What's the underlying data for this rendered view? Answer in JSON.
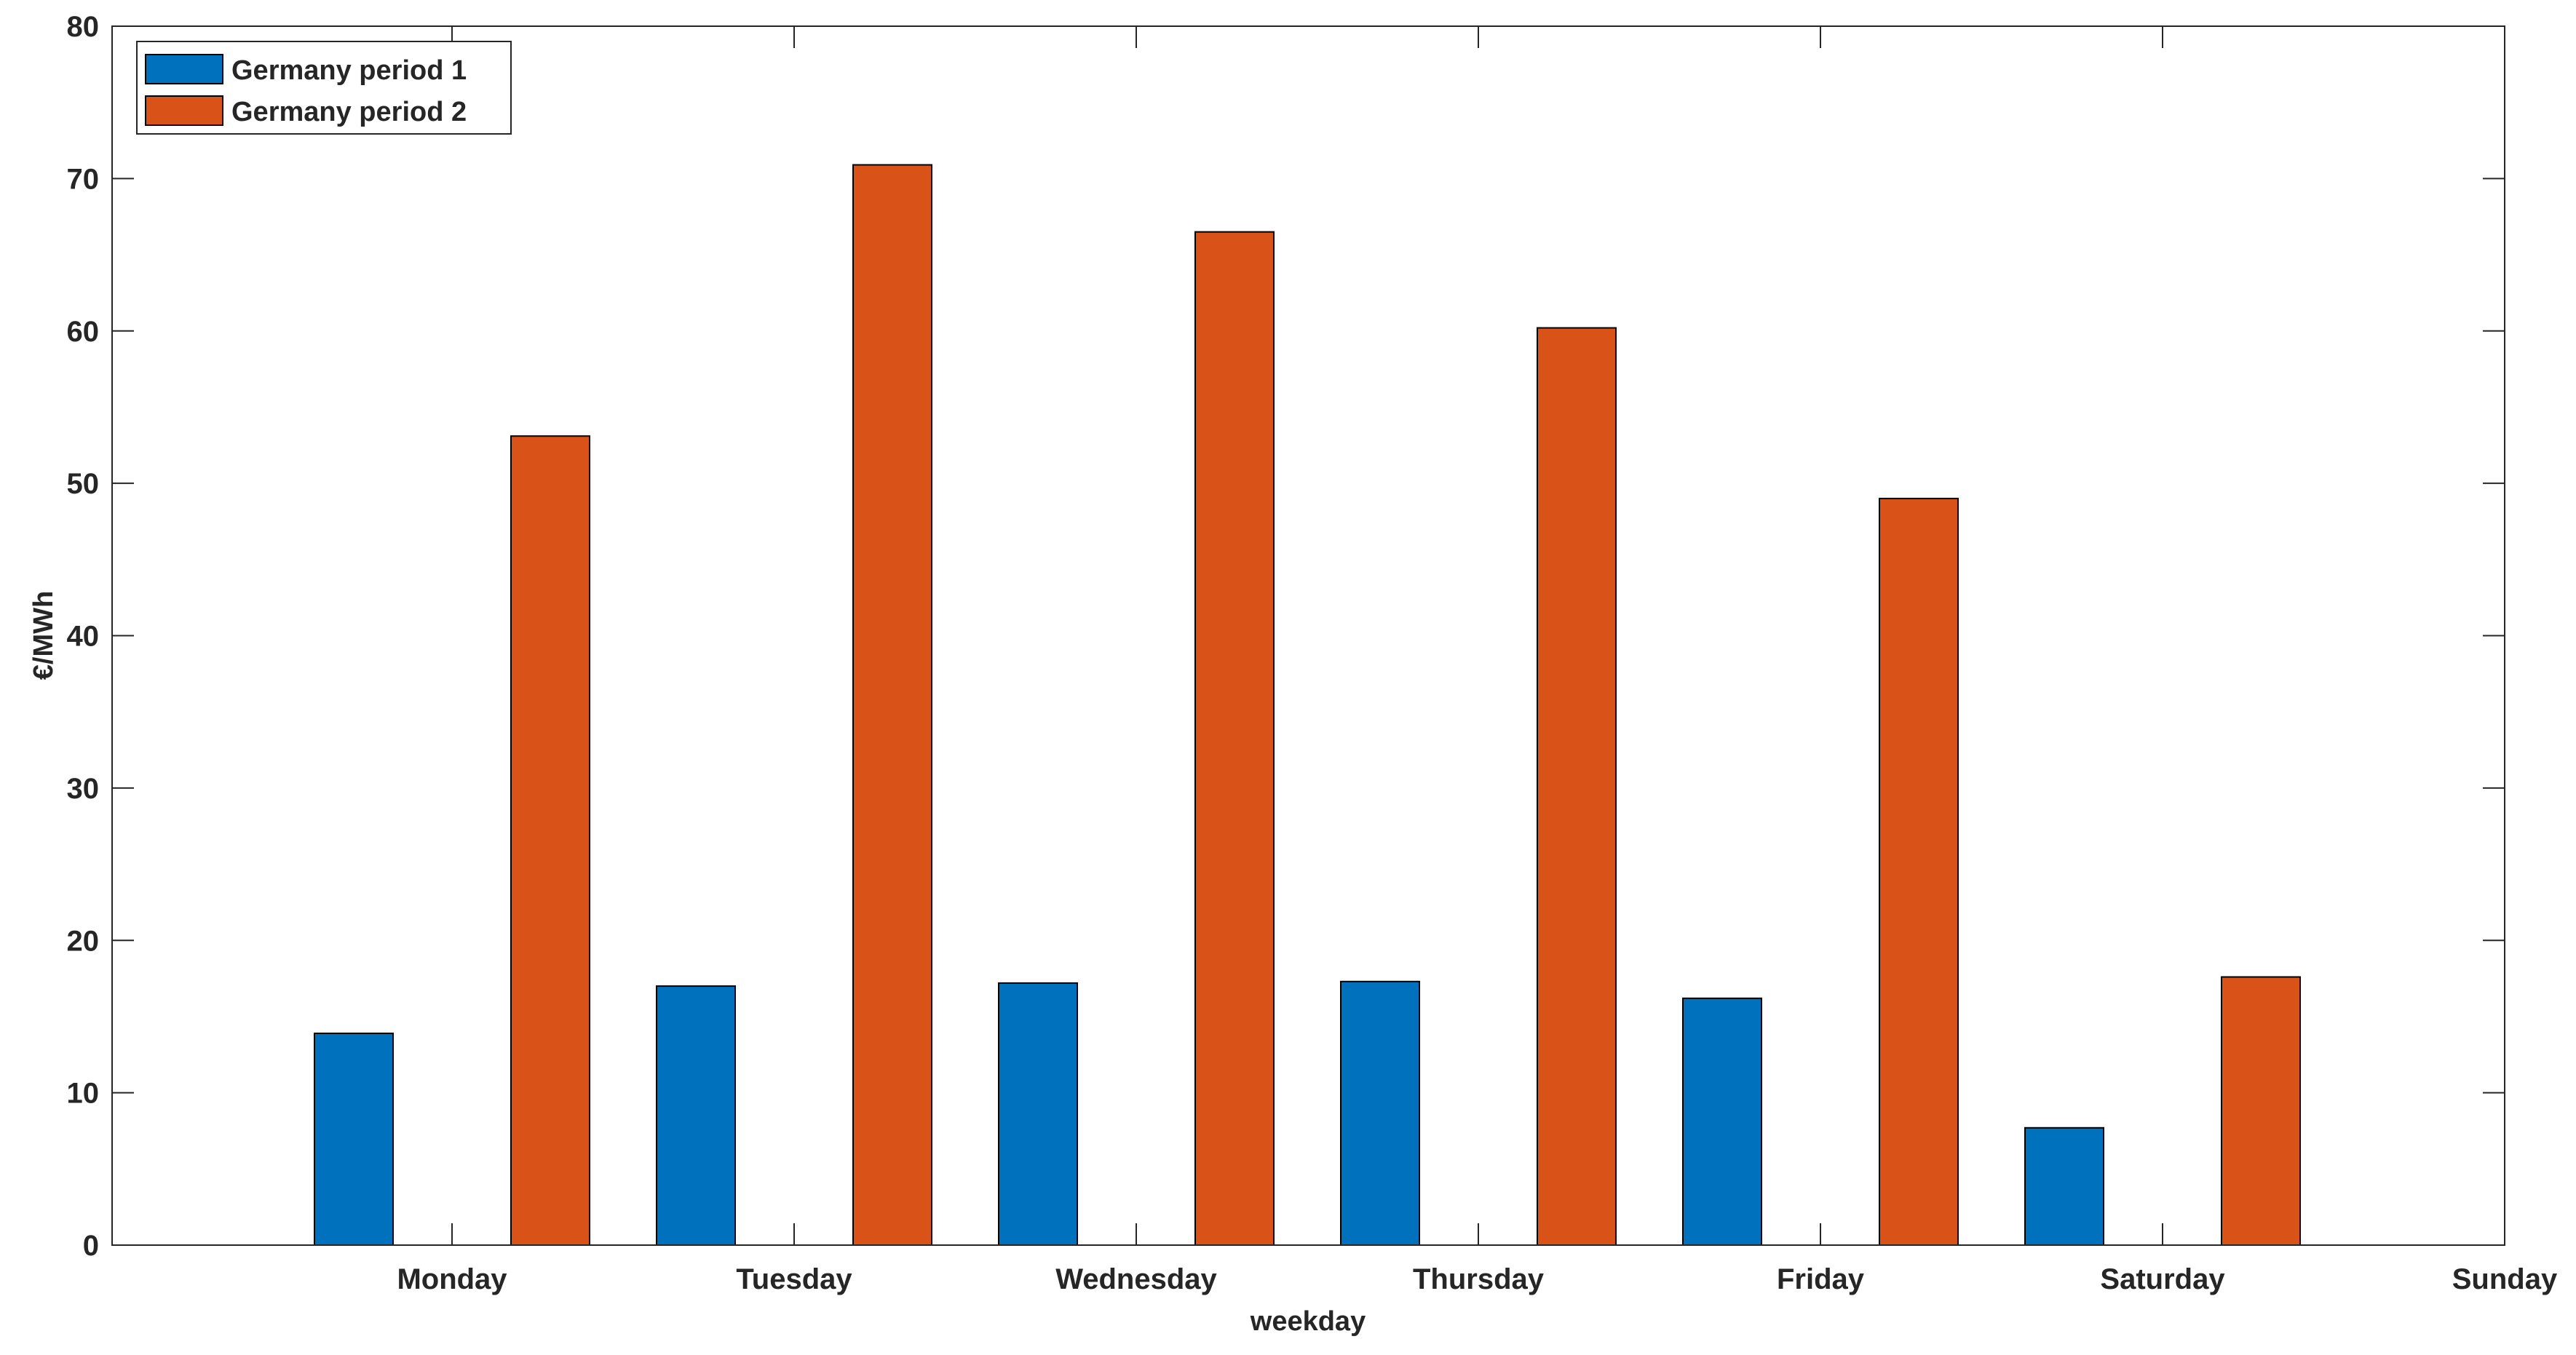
{
  "chart_data": {
    "type": "bar",
    "title": "",
    "xlabel": "weekday",
    "ylabel": "€/MWh",
    "categories": [
      "Monday",
      "Tuesday",
      "Wednesday",
      "Thursday",
      "Friday",
      "Saturday",
      "Sunday"
    ],
    "series": [
      {
        "name": "Germany period 1",
        "color": "#0072BD",
        "values": [
          13.9,
          17.0,
          17.2,
          17.3,
          16.2,
          7.7,
          null
        ]
      },
      {
        "name": "Germany period 2",
        "color": "#D95319",
        "values": [
          53.1,
          70.9,
          66.5,
          60.2,
          49.0,
          17.6,
          null
        ]
      }
    ],
    "ylim": [
      0,
      80
    ],
    "yticks": [
      0,
      10,
      20,
      30,
      40,
      50,
      60,
      70,
      80
    ],
    "ytick_labels": [
      "0",
      "10",
      "20",
      "30",
      "40",
      "50",
      "60",
      "70",
      "80"
    ],
    "grid": false,
    "legend_position": "top-left"
  }
}
